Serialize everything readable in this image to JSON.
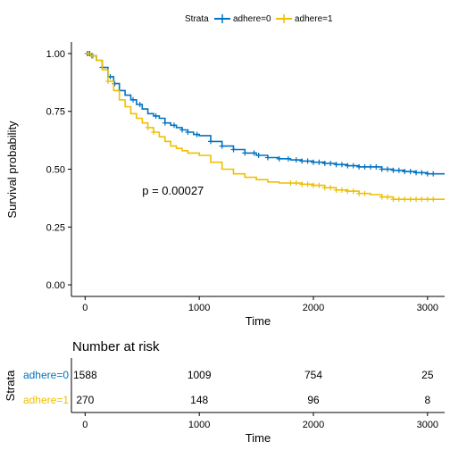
{
  "chart_data": {
    "type": "line",
    "subtype": "kaplan-meier",
    "legend": {
      "title": "Strata",
      "position": "top",
      "entries": [
        {
          "label": "adhere=0",
          "color": "#0073C2"
        },
        {
          "label": "adhere=1",
          "color": "#EFC000"
        }
      ]
    },
    "xlabel": "Time",
    "ylabel": "Survival probability",
    "xlim": [
      -120,
      3150
    ],
    "ylim": [
      -0.05,
      1.05
    ],
    "xticks": [
      0,
      1000,
      2000,
      3000
    ],
    "xtick_labels": [
      "0",
      "1000",
      "2000",
      "3000"
    ],
    "yticks": [
      0.0,
      0.25,
      0.5,
      0.75,
      1.0
    ],
    "ytick_labels": [
      "0.00",
      "0.25",
      "0.50",
      "0.75",
      "1.00"
    ],
    "annotation": {
      "text": "p = 0.00027",
      "x": 500,
      "y": 0.39
    },
    "grid": false,
    "series": [
      {
        "name": "adhere=0",
        "color": "#0073C2",
        "x": [
          0,
          50,
          100,
          150,
          200,
          250,
          300,
          350,
          400,
          450,
          500,
          550,
          600,
          650,
          700,
          750,
          800,
          850,
          900,
          950,
          1000,
          1100,
          1200,
          1300,
          1400,
          1500,
          1600,
          1700,
          1800,
          1900,
          2000,
          2100,
          2200,
          2300,
          2400,
          2500,
          2600,
          2700,
          2800,
          2900,
          3000,
          3150
        ],
        "y": [
          1.0,
          0.99,
          0.97,
          0.94,
          0.9,
          0.87,
          0.84,
          0.82,
          0.8,
          0.78,
          0.76,
          0.74,
          0.73,
          0.72,
          0.7,
          0.69,
          0.68,
          0.67,
          0.66,
          0.65,
          0.645,
          0.62,
          0.6,
          0.585,
          0.57,
          0.56,
          0.55,
          0.545,
          0.54,
          0.535,
          0.53,
          0.525,
          0.52,
          0.515,
          0.51,
          0.51,
          0.5,
          0.495,
          0.49,
          0.485,
          0.48,
          0.48
        ],
        "censor_x": [
          20,
          40,
          60,
          150,
          220,
          260,
          300,
          420,
          480,
          620,
          700,
          780,
          850,
          900,
          980,
          1100,
          1200,
          1300,
          1400,
          1480,
          1520,
          1600,
          1700,
          1780,
          1850,
          1900,
          1950,
          2000,
          2050,
          2100,
          2150,
          2200,
          2250,
          2300,
          2350,
          2400,
          2450,
          2500,
          2550,
          2600,
          2650,
          2700,
          2750,
          2800,
          2850,
          2900,
          2950,
          3000,
          3050
        ]
      },
      {
        "name": "adhere=1",
        "color": "#EFC000",
        "x": [
          0,
          50,
          100,
          150,
          200,
          250,
          300,
          350,
          400,
          450,
          500,
          550,
          600,
          650,
          700,
          750,
          800,
          850,
          900,
          1000,
          1100,
          1200,
          1300,
          1400,
          1500,
          1600,
          1700,
          1800,
          1900,
          2000,
          2100,
          2200,
          2300,
          2400,
          2500,
          2600,
          2700,
          2800,
          2900,
          3000,
          3150
        ],
        "y": [
          1.0,
          0.99,
          0.97,
          0.93,
          0.88,
          0.84,
          0.8,
          0.77,
          0.74,
          0.72,
          0.7,
          0.68,
          0.66,
          0.64,
          0.62,
          0.6,
          0.59,
          0.58,
          0.57,
          0.56,
          0.53,
          0.5,
          0.48,
          0.465,
          0.455,
          0.445,
          0.44,
          0.44,
          0.435,
          0.43,
          0.42,
          0.41,
          0.405,
          0.395,
          0.39,
          0.38,
          0.37,
          0.37,
          0.37,
          0.37,
          0.37
        ],
        "censor_x": [
          30,
          70,
          200,
          550,
          600,
          1800,
          1850,
          1900,
          1950,
          2000,
          2050,
          2100,
          2150,
          2200,
          2250,
          2300,
          2350,
          2400,
          2450,
          2600,
          2650,
          2700,
          2750,
          2800,
          2850,
          2900,
          2950,
          3000,
          3050
        ]
      }
    ]
  },
  "risk_table": {
    "title": "Number at risk",
    "ylabel": "Strata",
    "xlabel": "Time",
    "rows": [
      {
        "label": "adhere=0",
        "color": "#0073C2",
        "values": [
          "1588",
          "1009",
          "754",
          "25"
        ]
      },
      {
        "label": "adhere=1",
        "color": "#EFC000",
        "values": [
          "270",
          "148",
          "96",
          "8"
        ]
      }
    ],
    "times": [
      0,
      1000,
      2000,
      3000
    ],
    "xtick_labels": [
      "0",
      "1000",
      "2000",
      "3000"
    ]
  }
}
